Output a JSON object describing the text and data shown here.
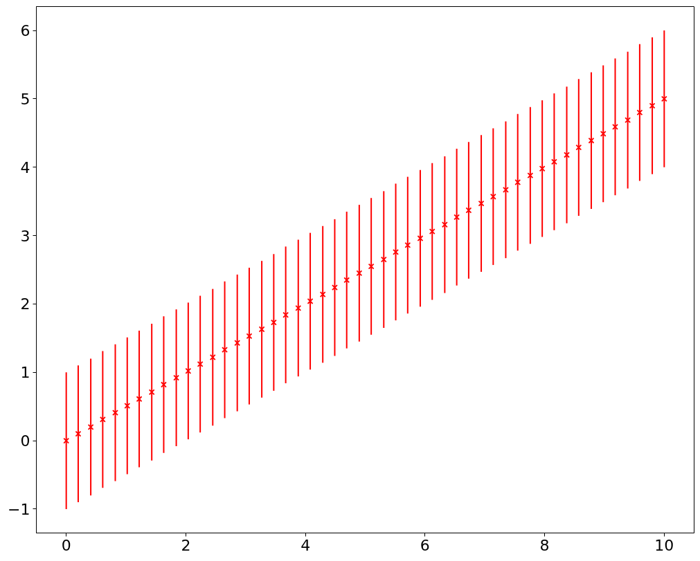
{
  "chart_data": {
    "type": "scatter",
    "x": [
      0,
      0.2,
      0.41,
      0.61,
      0.82,
      1.02,
      1.22,
      1.43,
      1.63,
      1.84,
      2.04,
      2.24,
      2.45,
      2.65,
      2.86,
      3.06,
      3.27,
      3.47,
      3.67,
      3.88,
      4.08,
      4.29,
      4.49,
      4.69,
      4.9,
      5.1,
      5.31,
      5.51,
      5.71,
      5.92,
      6.12,
      6.33,
      6.53,
      6.73,
      6.94,
      7.14,
      7.35,
      7.55,
      7.76,
      7.96,
      8.16,
      8.37,
      8.57,
      8.78,
      8.98,
      9.18,
      9.39,
      9.59,
      9.8,
      10
    ],
    "series": [
      {
        "color": "#ff0000",
        "values": [
          0,
          0.1,
          0.2,
          0.31,
          0.41,
          0.51,
          0.61,
          0.71,
          0.82,
          0.92,
          1.02,
          1.12,
          1.22,
          1.33,
          1.43,
          1.53,
          1.63,
          1.73,
          1.84,
          1.94,
          2.04,
          2.14,
          2.24,
          2.35,
          2.45,
          2.55,
          2.65,
          2.76,
          2.86,
          2.96,
          3.06,
          3.16,
          3.27,
          3.37,
          3.47,
          3.57,
          3.67,
          3.78,
          3.88,
          3.98,
          4.08,
          4.18,
          4.29,
          4.39,
          4.49,
          4.59,
          4.69,
          4.8,
          4.9,
          5
        ],
        "errors": [
          1,
          1,
          1,
          1,
          1,
          1,
          1,
          1,
          1,
          1,
          1,
          1,
          1,
          1,
          1,
          1,
          1,
          1,
          1,
          1,
          1,
          1,
          1,
          1,
          1,
          1,
          1,
          1,
          1,
          1,
          1,
          1,
          1,
          1,
          1,
          1,
          1,
          1,
          1,
          1,
          1,
          1,
          1,
          1,
          1,
          1,
          1,
          1,
          1,
          1
        ]
      }
    ],
    "xlim": [
      -0.5,
      10.5
    ],
    "ylim": [
      -1.35,
      6.35
    ],
    "xticks": [
      0,
      2,
      4,
      6,
      8,
      10
    ],
    "yticks": [
      {
        "value": -1,
        "label": "−1"
      },
      0,
      1,
      2,
      3,
      4,
      5,
      6
    ],
    "marker": "cross",
    "grid": false
  }
}
